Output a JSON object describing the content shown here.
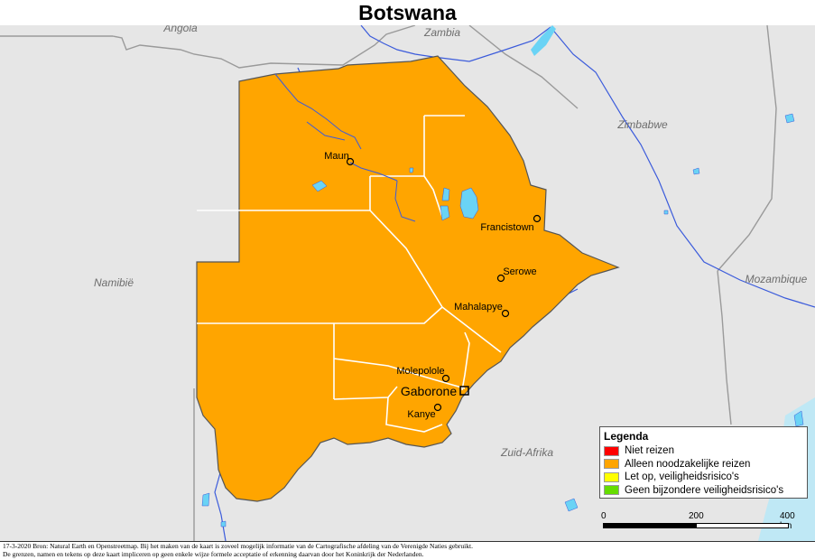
{
  "title": "Botswana",
  "countries": {
    "angola": "Angola",
    "zambia": "Zambia",
    "zimbabwe": "Zimbabwe",
    "namibia": "Namibië",
    "mozambique": "Mozambique",
    "south_africa": "Zuid-Afrika"
  },
  "cities": {
    "maun": "Maun",
    "francistown": "Francistown",
    "serowe": "Serowe",
    "mahalapye": "Mahalapye",
    "molepolole": "Molepolole",
    "gaborone": "Gaborone",
    "kanye": "Kanye"
  },
  "legend": {
    "title": "Legenda",
    "items": [
      {
        "label": "Niet reizen",
        "color": "#ff0000"
      },
      {
        "label": "Alleen noodzakelijke reizen",
        "color": "#ffa500"
      },
      {
        "label": "Let op, veiligheidsrisico's",
        "color": "#ffff00"
      },
      {
        "label": "Geen bijzondere veiligheidsrisico's",
        "color": "#66dd00"
      }
    ]
  },
  "scale": {
    "start": "0",
    "mid": "200",
    "end": "400 km"
  },
  "footer": {
    "line1": "17-3-2020 Bron: Natural Earth en Openstreetmap. Bij het maken van de kaart is zoveel mogelijk informatie van de Cartografische afdeling van de Verenigde Naties gebruikt.",
    "line2": "De grenzen, namen en tekens op deze kaart impliceren op geen enkele wijze formele acceptatie of erkenning daarvan door het Koninkrijk der Nederlanden."
  },
  "colors": {
    "botswana_fill": "#ffa500",
    "neighbor_fill": "#e6e6e6",
    "water": "#6ad3f5",
    "river": "#3b5bdb",
    "border": "#999999"
  },
  "travel_advice_level": "Alleen noodzakelijke reizen"
}
